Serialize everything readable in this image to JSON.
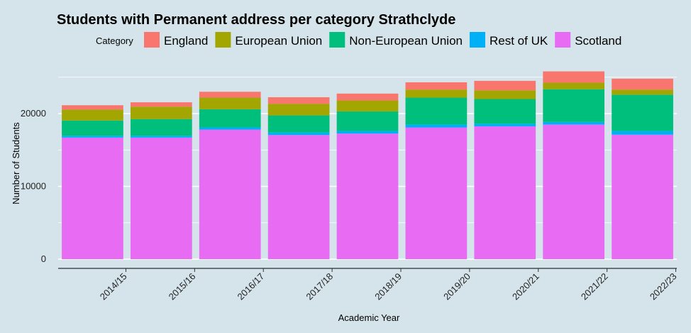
{
  "chart_data": {
    "type": "bar",
    "stacked": true,
    "title": "Students with Permanent address per category Strathclyde",
    "xlabel": "Academic Year",
    "ylabel": "Number of Students",
    "ylim": [
      0,
      26800
    ],
    "yticks": [
      0,
      10000,
      20000
    ],
    "ytick_labels": [
      "0",
      "10000",
      "20000"
    ],
    "grid": "horizontal",
    "legend_position": "top",
    "legend_title": "Category",
    "categories": [
      "2014/15",
      "2015/16",
      "2016/17",
      "2017/18",
      "2018/19",
      "2019/20",
      "2020/21",
      "2021/22",
      "2022/23"
    ],
    "series": [
      {
        "name": "Scotland",
        "color": "#e76bf3",
        "values": [
          16700,
          16700,
          17800,
          17050,
          17250,
          18100,
          18250,
          18500,
          17100
        ]
      },
      {
        "name": "Rest of UK",
        "color": "#00b0f6",
        "values": [
          250,
          250,
          300,
          350,
          350,
          400,
          350,
          350,
          500
        ]
      },
      {
        "name": "Non-European Union",
        "color": "#00bf7d",
        "values": [
          2100,
          2300,
          2500,
          2350,
          2700,
          3700,
          3400,
          4500,
          5000
        ]
      },
      {
        "name": "European Union",
        "color": "#a3a500",
        "values": [
          1500,
          1700,
          1600,
          1600,
          1500,
          1100,
          1200,
          900,
          700
        ]
      },
      {
        "name": "England",
        "color": "#f8766d",
        "values": [
          600,
          600,
          800,
          900,
          950,
          1000,
          1300,
          1550,
          1500
        ]
      }
    ],
    "legend_order": [
      "England",
      "European Union",
      "Non-European Union",
      "Rest of UK",
      "Scotland"
    ]
  }
}
